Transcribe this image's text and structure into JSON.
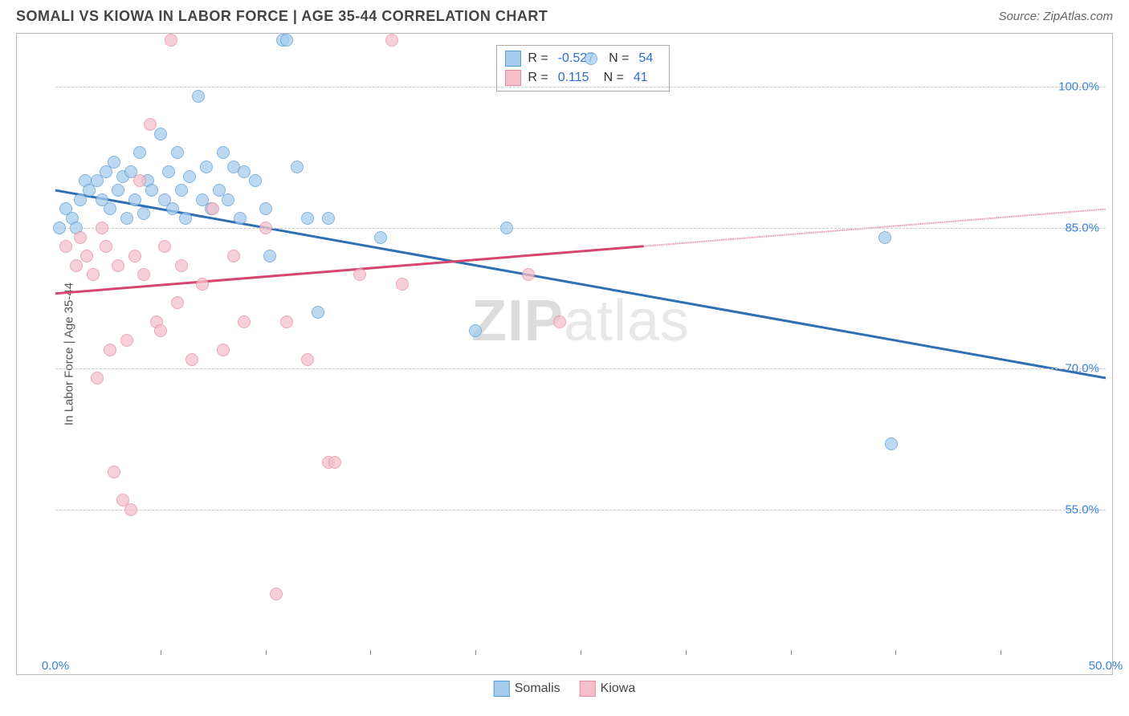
{
  "header": {
    "title": "SOMALI VS KIOWA IN LABOR FORCE | AGE 35-44 CORRELATION CHART",
    "source": "Source: ZipAtlas.com"
  },
  "chart": {
    "type": "scatter",
    "y_label": "In Labor Force | Age 35-44",
    "watermark_prefix": "ZIP",
    "watermark_suffix": "atlas",
    "background_color": "#ffffff",
    "grid_color": "#cccccc",
    "axis_label_color": "#3b82d6",
    "x_range": [
      0,
      50
    ],
    "y_range": [
      40,
      105
    ],
    "y_ticks": [
      {
        "value": 100,
        "label": "100.0%"
      },
      {
        "value": 85,
        "label": "85.0%"
      },
      {
        "value": 70,
        "label": "70.0%"
      },
      {
        "value": 55,
        "label": "55.0%"
      }
    ],
    "x_ticks_minor": [
      5,
      10,
      15,
      20,
      25,
      30,
      35,
      40,
      45
    ],
    "x_ticks_labeled": [
      {
        "value": 0,
        "label": "0.0%"
      },
      {
        "value": 50,
        "label": "50.0%"
      }
    ],
    "series": [
      {
        "name": "Somalis",
        "fill": "#a7cdee",
        "stroke": "#5a9bd5",
        "line_color": "#2f6fb5",
        "marker_radius": 8,
        "marker_opacity": 0.75,
        "R": "-0.527",
        "N": "54",
        "trend": {
          "x1": 0,
          "y1": 89,
          "x2": 50,
          "y2": 69,
          "solid_until_x": 50
        },
        "points": [
          [
            0.2,
            85
          ],
          [
            0.5,
            87
          ],
          [
            0.8,
            86
          ],
          [
            1.0,
            85
          ],
          [
            1.2,
            88
          ],
          [
            1.4,
            90
          ],
          [
            1.6,
            89
          ],
          [
            2.0,
            90
          ],
          [
            2.2,
            88
          ],
          [
            2.4,
            91
          ],
          [
            2.6,
            87
          ],
          [
            2.8,
            92
          ],
          [
            3.0,
            89
          ],
          [
            3.2,
            90.5
          ],
          [
            3.4,
            86
          ],
          [
            3.6,
            91
          ],
          [
            3.8,
            88
          ],
          [
            4.0,
            93
          ],
          [
            4.2,
            86.5
          ],
          [
            4.4,
            90
          ],
          [
            4.6,
            89
          ],
          [
            5.0,
            95
          ],
          [
            5.2,
            88
          ],
          [
            5.4,
            91
          ],
          [
            5.6,
            87
          ],
          [
            5.8,
            93
          ],
          [
            6.0,
            89
          ],
          [
            6.2,
            86
          ],
          [
            6.4,
            90.5
          ],
          [
            6.8,
            99
          ],
          [
            7.0,
            88
          ],
          [
            7.2,
            91.5
          ],
          [
            7.4,
            87
          ],
          [
            7.8,
            89
          ],
          [
            8.0,
            93
          ],
          [
            8.2,
            88
          ],
          [
            8.5,
            91.5
          ],
          [
            8.8,
            86
          ],
          [
            9.0,
            91
          ],
          [
            9.5,
            90
          ],
          [
            10.0,
            87
          ],
          [
            10.2,
            82
          ],
          [
            10.8,
            105
          ],
          [
            11.0,
            105
          ],
          [
            11.5,
            91.5
          ],
          [
            12.0,
            86
          ],
          [
            12.5,
            76
          ],
          [
            13.0,
            86
          ],
          [
            15.5,
            84
          ],
          [
            20.0,
            74
          ],
          [
            21.5,
            85
          ],
          [
            25.5,
            103
          ],
          [
            39.5,
            84
          ],
          [
            39.8,
            62
          ]
        ]
      },
      {
        "name": "Kiowa",
        "fill": "#f5c0cc",
        "stroke": "#e68aa2",
        "line_color": "#d6456f",
        "marker_radius": 8,
        "marker_opacity": 0.75,
        "R": "0.115",
        "N": "41",
        "trend": {
          "x1": 0,
          "y1": 78,
          "x2": 50,
          "y2": 87,
          "solid_until_x": 28
        },
        "points": [
          [
            0.5,
            83
          ],
          [
            1.0,
            81
          ],
          [
            1.2,
            84
          ],
          [
            1.5,
            82
          ],
          [
            1.8,
            80
          ],
          [
            2.0,
            69
          ],
          [
            2.2,
            85
          ],
          [
            2.4,
            83
          ],
          [
            2.6,
            72
          ],
          [
            2.8,
            59
          ],
          [
            3.0,
            81
          ],
          [
            3.2,
            56
          ],
          [
            3.4,
            73
          ],
          [
            3.6,
            55
          ],
          [
            3.8,
            82
          ],
          [
            4.0,
            90
          ],
          [
            4.2,
            80
          ],
          [
            4.5,
            96
          ],
          [
            4.8,
            75
          ],
          [
            5.0,
            74
          ],
          [
            5.2,
            83
          ],
          [
            5.5,
            105
          ],
          [
            5.8,
            77
          ],
          [
            6.0,
            81
          ],
          [
            6.5,
            71
          ],
          [
            7.0,
            79
          ],
          [
            7.5,
            87
          ],
          [
            8.0,
            72
          ],
          [
            8.5,
            82
          ],
          [
            9.0,
            75
          ],
          [
            10.0,
            85
          ],
          [
            10.5,
            46
          ],
          [
            11.0,
            75
          ],
          [
            12.0,
            71
          ],
          [
            13.0,
            60
          ],
          [
            13.3,
            60
          ],
          [
            14.5,
            80
          ],
          [
            16.0,
            105
          ],
          [
            16.5,
            79
          ],
          [
            22.5,
            80
          ],
          [
            24.0,
            75
          ]
        ]
      }
    ],
    "legend_bottom": [
      {
        "label": "Somalis",
        "fill": "#a7cdee",
        "stroke": "#5a9bd5"
      },
      {
        "label": "Kiowa",
        "fill": "#f5c0cc",
        "stroke": "#e68aa2"
      }
    ]
  }
}
